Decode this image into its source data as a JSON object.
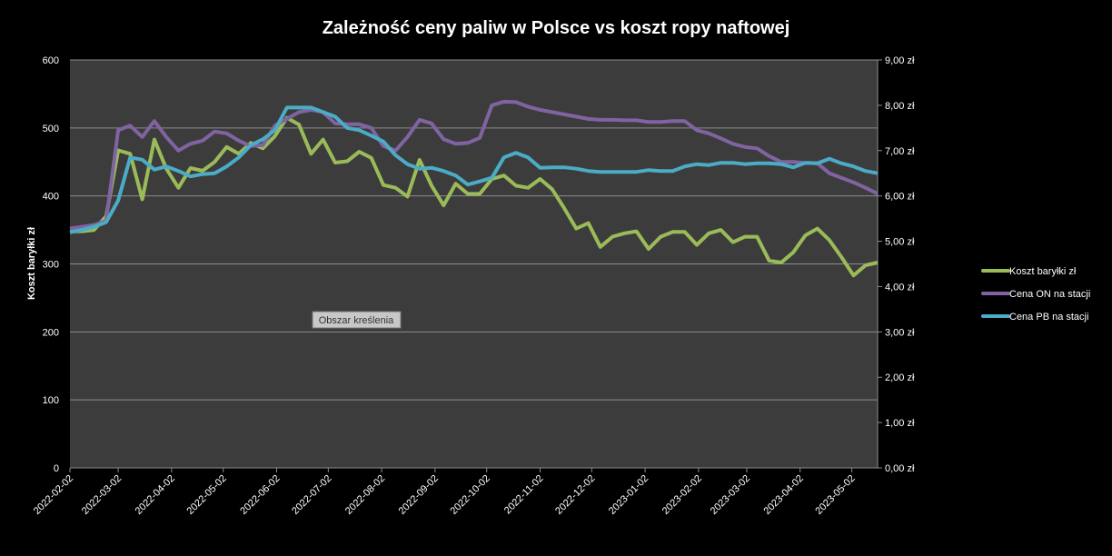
{
  "chart_data": {
    "type": "line",
    "title": "Zależność ceny paliw w Polsce vs koszt ropy naftowej",
    "ylabel": "Koszt baryłki zł",
    "ylim": [
      0,
      600
    ],
    "y_ticks": [
      "0",
      "100",
      "200",
      "300",
      "400",
      "500",
      "600"
    ],
    "y2lim": [
      0,
      9
    ],
    "y2_ticks": [
      "0,00 zł",
      "1,00 zł",
      "2,00 zł",
      "3,00 zł",
      "4,00 zł",
      "5,00 zł",
      "6,00 zł",
      "7,00 zł",
      "8,00 zł",
      "9,00 zł"
    ],
    "x_start": "2022-02-02",
    "x_step_days": 7,
    "x_ticks": [
      "2022-02-02",
      "2022-03-02",
      "2022-04-02",
      "2022-05-02",
      "2022-06-02",
      "2022-07-02",
      "2022-08-02",
      "2022-09-02",
      "2022-10-02",
      "2022-11-02",
      "2022-12-02",
      "2023-01-02",
      "2023-02-02",
      "2023-03-02",
      "2023-04-02",
      "2023-05-02"
    ],
    "grid": true,
    "legend": "right",
    "tooltip": "Obszar kreślenia",
    "series": [
      {
        "name": "Koszt baryłki zł",
        "axis": "left",
        "color": "#9BBB59",
        "values": [
          348,
          348,
          350,
          370,
          467,
          462,
          395,
          483,
          440,
          412,
          441,
          437,
          450,
          472,
          462,
          478,
          470,
          488,
          515,
          505,
          462,
          483,
          449,
          451,
          465,
          456,
          416,
          412,
          399,
          453,
          415,
          386,
          418,
          403,
          403,
          425,
          430,
          415,
          412,
          425,
          410,
          382,
          352,
          360,
          325,
          340,
          345,
          348,
          322,
          340,
          347,
          347,
          328,
          345,
          350,
          332,
          340,
          340,
          305,
          302,
          317,
          342,
          352,
          335,
          310,
          283,
          298,
          302
        ]
      },
      {
        "name": "Cena ON na stacji",
        "axis": "right",
        "color": "#8064A2",
        "values": [
          5.28,
          5.32,
          5.36,
          5.45,
          7.45,
          7.55,
          7.3,
          7.65,
          7.3,
          7.0,
          7.15,
          7.22,
          7.42,
          7.38,
          7.22,
          7.1,
          7.12,
          7.55,
          7.7,
          7.85,
          7.9,
          7.85,
          7.6,
          7.58,
          7.58,
          7.5,
          7.1,
          7.0,
          7.3,
          7.68,
          7.6,
          7.25,
          7.15,
          7.17,
          7.28,
          8.0,
          8.08,
          8.07,
          7.97,
          7.9,
          7.85,
          7.8,
          7.75,
          7.7,
          7.68,
          7.68,
          7.67,
          7.67,
          7.63,
          7.63,
          7.65,
          7.65,
          7.45,
          7.38,
          7.27,
          7.15,
          7.08,
          7.05,
          6.88,
          6.75,
          6.75,
          6.73,
          6.72,
          6.5,
          6.4,
          6.3,
          6.18,
          6.05
        ]
      },
      {
        "name": "Cena PB na stacji",
        "axis": "right",
        "color": "#4BACC6",
        "values": [
          5.2,
          5.25,
          5.32,
          5.42,
          5.9,
          6.85,
          6.8,
          6.58,
          6.65,
          6.55,
          6.43,
          6.48,
          6.5,
          6.65,
          6.85,
          7.12,
          7.25,
          7.45,
          7.95,
          7.95,
          7.95,
          7.85,
          7.75,
          7.5,
          7.45,
          7.33,
          7.2,
          6.9,
          6.7,
          6.6,
          6.62,
          6.55,
          6.45,
          6.25,
          6.32,
          6.4,
          6.85,
          6.95,
          6.85,
          6.62,
          6.63,
          6.63,
          6.6,
          6.55,
          6.53,
          6.53,
          6.53,
          6.53,
          6.57,
          6.55,
          6.55,
          6.65,
          6.7,
          6.68,
          6.73,
          6.73,
          6.7,
          6.72,
          6.72,
          6.7,
          6.63,
          6.73,
          6.72,
          6.82,
          6.72,
          6.65,
          6.55,
          6.5
        ]
      }
    ]
  }
}
